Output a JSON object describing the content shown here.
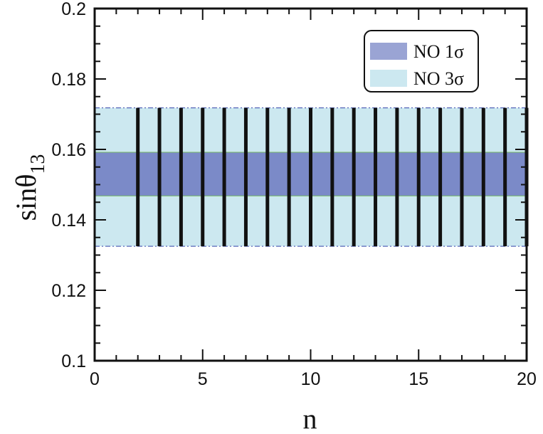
{
  "chart_data": {
    "type": "bar",
    "xlabel": "n",
    "ylabel": "sinθ",
    "ylabel_subscript": "13",
    "xlim": [
      0,
      20
    ],
    "ylim": [
      0.1,
      0.2
    ],
    "xticks": [
      "0",
      "5",
      "10",
      "15",
      "20"
    ],
    "yticks": [
      "0.1",
      "0.12",
      "0.14",
      "0.16",
      "0.18",
      "0.2"
    ],
    "grid": false,
    "legend_position": "top-right",
    "bands": [
      {
        "name": "NO 3σ",
        "y_range": [
          0.1325,
          0.1718
        ],
        "color": "#cce8f0"
      },
      {
        "name": "NO 1σ",
        "y_range": [
          0.1468,
          0.1592
        ],
        "color": "#7b8ac8"
      }
    ],
    "legend": [
      {
        "label": "NO 1σ",
        "color": "#9aa4d4"
      },
      {
        "label": "NO 3σ",
        "color": "#cce8f0"
      }
    ],
    "series": [
      {
        "x": [
          2,
          3,
          4,
          5,
          6,
          7,
          8,
          9,
          10,
          11,
          12,
          13,
          14,
          15,
          16,
          17,
          18,
          19,
          20
        ],
        "y_range": [
          0.1325,
          0.1718
        ],
        "color": "#111111"
      }
    ]
  }
}
